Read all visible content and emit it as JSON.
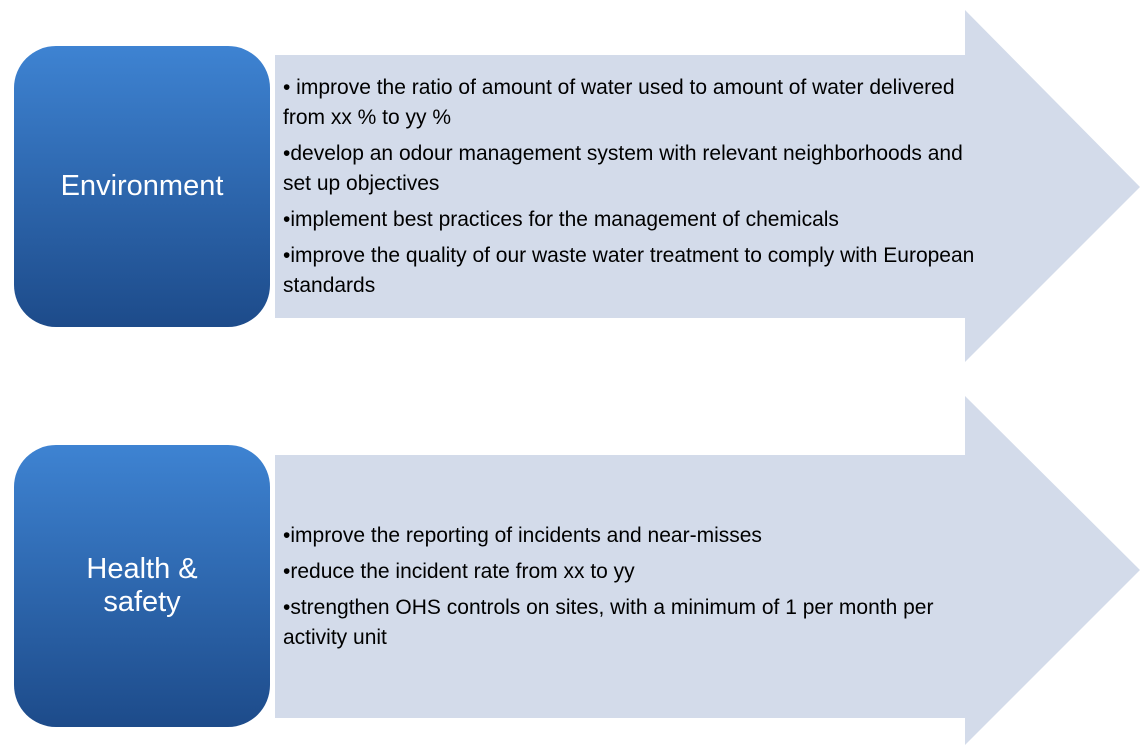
{
  "rows": [
    {
      "label": "Environment",
      "items": [
        "• improve the ratio of amount of water used to amount of water delivered from xx % to yy %",
        "•develop an odour management system with relevant neighborhoods and set up objectives",
        "•implement best practices for the management of chemicals",
        "•improve the quality of our waste water treatment to comply with European standards"
      ]
    },
    {
      "label": "Health & safety",
      "items": [
        "•improve the reporting of incidents and near-misses",
        "•reduce the incident rate from xx  to yy",
        "•strengthen OHS controls on sites, with a minimum of 1 per month per activity unit"
      ]
    }
  ]
}
